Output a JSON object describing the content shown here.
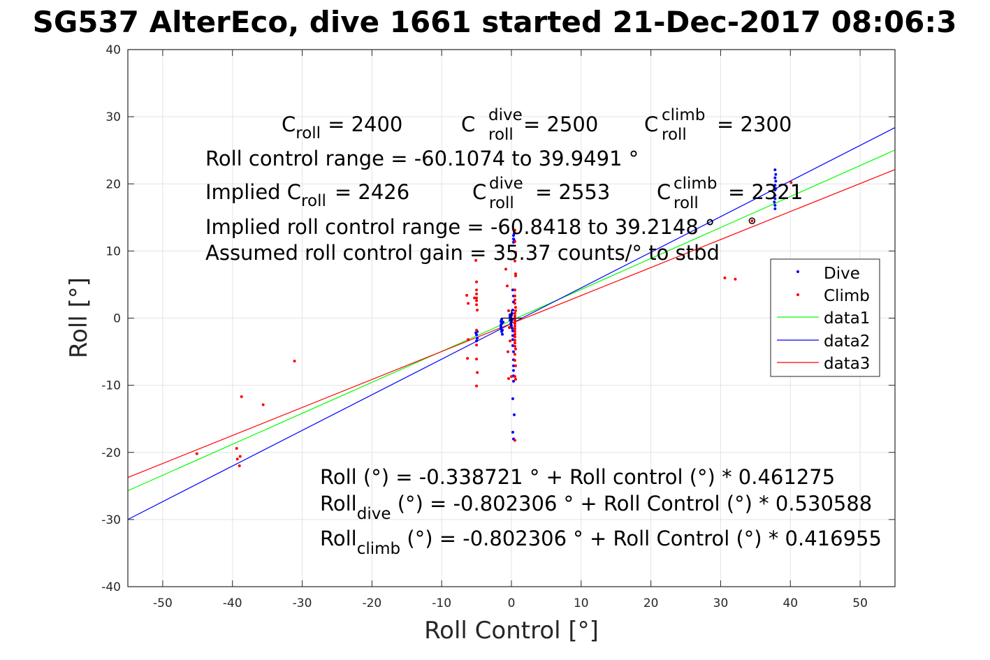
{
  "chart_data": {
    "type": "scatter",
    "title": "SG537 AlterEco, dive 1661 started 21-Dec-2017 08:06:3",
    "xlabel": "Roll Control [°]",
    "ylabel": "Roll [°]",
    "xlim": [
      -55,
      55
    ],
    "ylim": [
      -40,
      40
    ],
    "xticks": [
      -50,
      -40,
      -30,
      -20,
      -10,
      0,
      10,
      20,
      30,
      40,
      50
    ],
    "yticks": [
      -40,
      -30,
      -20,
      -10,
      0,
      10,
      20,
      30,
      40
    ],
    "grid": true,
    "legend_position": "right",
    "series": [
      {
        "name": "Dive",
        "kind": "points",
        "color": "#0000ff",
        "points": [
          [
            -1.5,
            -0.5
          ],
          [
            -1.5,
            -1.0
          ],
          [
            -1.5,
            -1.3
          ],
          [
            -1.5,
            -1.6
          ],
          [
            -1.4,
            -2.0
          ],
          [
            -1.4,
            -0.2
          ],
          [
            -1.4,
            -0.8
          ],
          [
            -1.3,
            -1.8
          ],
          [
            -1.3,
            -2.4
          ],
          [
            -1.2,
            -0.6
          ],
          [
            -0.2,
            0.5
          ],
          [
            -0.2,
            0.2
          ],
          [
            -0.2,
            -0.3
          ],
          [
            -0.1,
            -0.8
          ],
          [
            -0.1,
            -1.3
          ],
          [
            -0.1,
            0.0
          ],
          [
            0.0,
            0.4
          ],
          [
            0.0,
            -0.5
          ],
          [
            0.0,
            -1.1
          ],
          [
            0.1,
            0.7
          ],
          [
            0.1,
            -0.2
          ],
          [
            0.1,
            -1.5
          ],
          [
            0.2,
            -1.9
          ],
          [
            0.2,
            -2.6
          ],
          [
            0.2,
            -3.2
          ],
          [
            0.2,
            -4.1
          ],
          [
            0.3,
            -5.0
          ],
          [
            0.3,
            -6.2
          ],
          [
            0.3,
            -7.1
          ],
          [
            0.3,
            -7.8
          ],
          [
            0.3,
            -8.6
          ],
          [
            0.3,
            -9.4
          ],
          [
            0.2,
            -12.0
          ],
          [
            0.4,
            -14.4
          ],
          [
            0.2,
            -17.0
          ],
          [
            0.3,
            -18.0
          ],
          [
            0.2,
            1.2
          ],
          [
            0.3,
            2.4
          ],
          [
            0.3,
            3.3
          ],
          [
            0.2,
            4.2
          ],
          [
            0.3,
            11.3
          ],
          [
            0.4,
            11.6
          ],
          [
            0.3,
            12.3
          ],
          [
            0.4,
            12.6
          ],
          [
            0.3,
            11.8
          ],
          [
            -4.9,
            -2.0
          ],
          [
            -5.0,
            -2.5
          ],
          [
            -4.9,
            -3.0
          ],
          [
            -5.0,
            -3.4
          ],
          [
            -5.1,
            -2.2
          ],
          [
            37.8,
            16.3
          ],
          [
            37.8,
            16.8
          ],
          [
            37.8,
            17.8
          ],
          [
            37.8,
            18.3
          ],
          [
            37.9,
            19.3
          ],
          [
            37.8,
            19.8
          ],
          [
            37.9,
            20.4
          ],
          [
            37.8,
            20.9
          ],
          [
            37.9,
            21.4
          ],
          [
            37.8,
            22.1
          ],
          [
            37.7,
            17.3
          ],
          [
            37.8,
            19.1
          ]
        ]
      },
      {
        "name": "Climb",
        "kind": "points",
        "color": "#ff0000",
        "points": [
          [
            -45.1,
            -20.2
          ],
          [
            -39.4,
            -19.4
          ],
          [
            -39.3,
            -21.0
          ],
          [
            -39.0,
            -22.0
          ],
          [
            -38.9,
            -20.6
          ],
          [
            -38.7,
            -11.7
          ],
          [
            -35.6,
            -12.9
          ],
          [
            -31.1,
            -6.4
          ],
          [
            -6.4,
            3.4
          ],
          [
            -6.2,
            2.2
          ],
          [
            -6.2,
            -3.2
          ],
          [
            -6.3,
            -6.0
          ],
          [
            -5.3,
            3.0
          ],
          [
            -5.1,
            8.6
          ],
          [
            -5.0,
            5.4
          ],
          [
            -5.0,
            4.2
          ],
          [
            -5.0,
            3.6
          ],
          [
            -5.0,
            3.0
          ],
          [
            -5.0,
            2.6
          ],
          [
            -5.0,
            2.0
          ],
          [
            -4.9,
            1.2
          ],
          [
            -5.0,
            -1.8
          ],
          [
            -5.0,
            -4.0
          ],
          [
            -5.0,
            -6.1
          ],
          [
            -4.9,
            -8.1
          ],
          [
            -5.0,
            -10.1
          ],
          [
            -0.8,
            7.3
          ],
          [
            -0.6,
            4.8
          ],
          [
            -0.4,
            1.1
          ],
          [
            -0.3,
            -1.4
          ],
          [
            -0.2,
            -3.4
          ],
          [
            -0.5,
            -5.0
          ],
          [
            -0.4,
            -9.0
          ],
          [
            0.0,
            -8.7
          ],
          [
            0.5,
            -0.1
          ],
          [
            0.5,
            -0.4
          ],
          [
            0.5,
            -0.8
          ],
          [
            0.5,
            -1.2
          ],
          [
            0.5,
            -1.6
          ],
          [
            0.5,
            -2.0
          ],
          [
            0.5,
            -2.4
          ],
          [
            0.5,
            -2.8
          ],
          [
            0.5,
            -3.3
          ],
          [
            0.5,
            -3.7
          ],
          [
            0.5,
            -4.2
          ],
          [
            0.6,
            -4.6
          ],
          [
            0.5,
            -5.4
          ],
          [
            0.5,
            -6.3
          ],
          [
            0.6,
            -7.1
          ],
          [
            0.5,
            -8.7
          ],
          [
            0.6,
            -9.1
          ],
          [
            0.5,
            -18.2
          ],
          [
            0.5,
            0.3
          ],
          [
            0.5,
            0.7
          ],
          [
            0.6,
            1.1
          ],
          [
            0.6,
            1.6
          ],
          [
            0.5,
            2.2
          ],
          [
            0.5,
            2.7
          ],
          [
            0.5,
            3.3
          ],
          [
            0.5,
            4.2
          ],
          [
            0.6,
            6.3
          ],
          [
            0.6,
            6.6
          ],
          [
            0.5,
            8.5
          ],
          [
            0.6,
            9.8
          ],
          [
            0.5,
            11.4
          ],
          [
            0.5,
            13.1
          ],
          [
            30.6,
            6.0
          ],
          [
            32.1,
            5.8
          ],
          [
            34.5,
            14.5
          ],
          [
            40.1,
            20.2
          ]
        ]
      },
      {
        "name": "data1",
        "kind": "line",
        "color": "#00ff00",
        "intercept": -0.338721,
        "slope": 0.461275
      },
      {
        "name": "data2",
        "kind": "line",
        "color": "#0000ff",
        "intercept": -0.802306,
        "slope": 0.530588
      },
      {
        "name": "data3",
        "kind": "line",
        "color": "#ff0000",
        "intercept": -0.802306,
        "slope": 0.416955
      }
    ],
    "marked_point": [
      34.5,
      14.5
    ],
    "annotations": {
      "c_roll": {
        "base": "C",
        "sub": "roll",
        "value": "= 2400"
      },
      "c_roll_dive": {
        "base": "C",
        "sup": "dive",
        "sub": "roll",
        "value": "= 2500"
      },
      "c_roll_climb": {
        "base": "C",
        "sup": "climb",
        "sub": "roll",
        "value": "= 2300"
      },
      "roll_control_range": "Roll control range = -60.1074 to 39.9491 °",
      "implied_c_roll": {
        "base": "Implied C",
        "sub": "roll",
        "value": "= 2426"
      },
      "implied_c_roll_dive": {
        "base": "C",
        "sup": "dive",
        "sub": "roll",
        "value": "= 2553"
      },
      "implied_c_roll_climb": {
        "base": "C",
        "sup": "climb",
        "sub": "roll",
        "value": "= 2321"
      },
      "implied_range": "Implied roll control range = -60.8418 to 39.2148 °",
      "assumed_gain": "Assumed roll control gain = 35.37 counts/° to stbd",
      "eq_all": "Roll (°) = -0.338721 ° + Roll control (°) * 0.461275",
      "eq_dive": {
        "base": "Roll",
        "sub": "dive",
        "rest": " (°) = -0.802306 ° + Roll Control (°) * 0.530588"
      },
      "eq_climb": {
        "base": "Roll",
        "sub": "climb",
        "rest": " (°) = -0.802306 ° + Roll Control (°) * 0.416955"
      }
    }
  }
}
